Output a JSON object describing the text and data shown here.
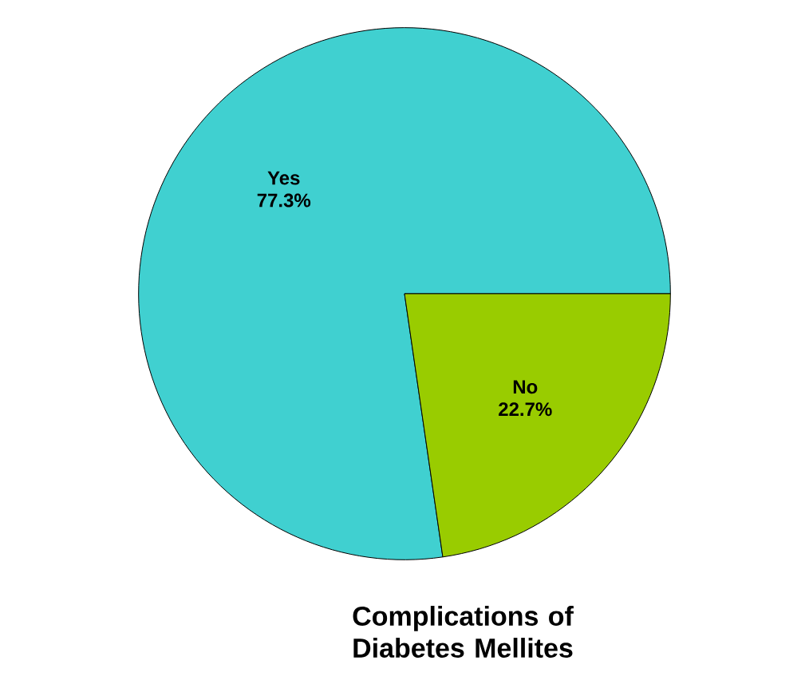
{
  "chart_data": {
    "type": "pie",
    "title": "Complications of Diabetes Mellites",
    "categories": [
      "Yes",
      "No"
    ],
    "values": [
      77.3,
      22.7
    ],
    "colors": [
      "#40d0d0",
      "#99cc00"
    ],
    "value_labels": [
      "77.3%",
      "22.7%"
    ]
  }
}
